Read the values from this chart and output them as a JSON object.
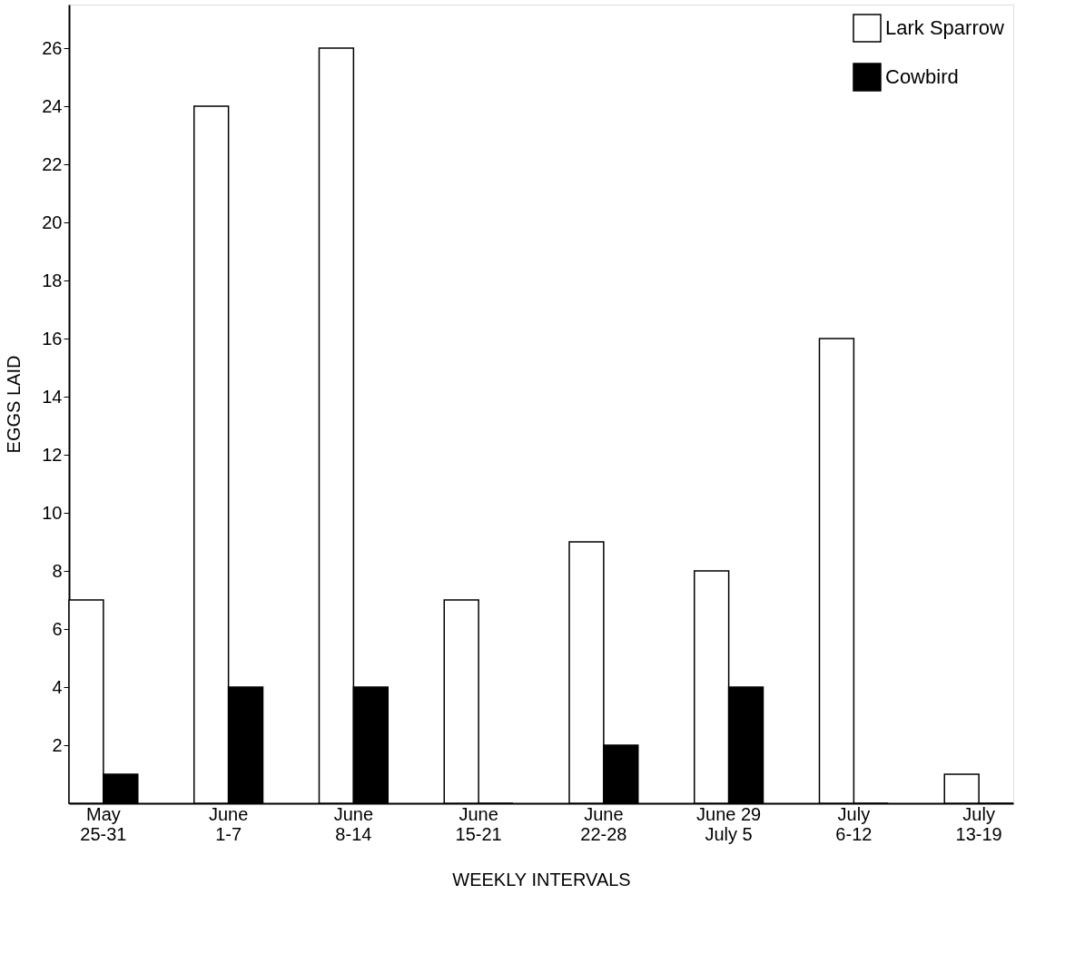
{
  "chart_data": {
    "type": "bar",
    "xlabel": "WEEKLY  INTERVALS",
    "ylabel": "EGGS  LAID",
    "categories": [
      "May\n25-31",
      "June\n1-7",
      "June\n8-14",
      "June\n15-21",
      "June\n22-28",
      "June 29\nJuly 5",
      "July\n6-12",
      "July\n13-19"
    ],
    "series": [
      {
        "name": "Lark Sparrow",
        "color": "#ffffff",
        "values": [
          7,
          24,
          26,
          7,
          9,
          8,
          16,
          1
        ]
      },
      {
        "name": "Cowbird",
        "color": "#000000",
        "values": [
          1,
          4,
          4,
          0,
          2,
          4,
          0,
          0
        ]
      }
    ],
    "ylim": [
      0,
      27.5
    ],
    "yticks": [
      2,
      4,
      6,
      8,
      10,
      12,
      14,
      16,
      18,
      20,
      22,
      24,
      26
    ],
    "grid": false,
    "legend": "top right"
  }
}
